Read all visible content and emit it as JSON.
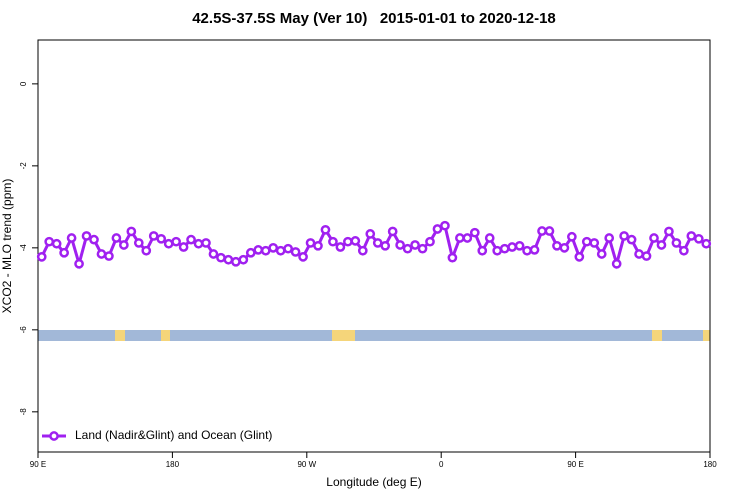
{
  "chart_data": {
    "type": "line",
    "title": "42.5S-37.5S May (Ver 10)   2015-01-01 to 2020-12-18",
    "x_label": "Longitude (deg E)",
    "y_label": "XCO2 - MLO trend (ppm)",
    "x": [
      92.5,
      97.5,
      102.5,
      107.5,
      112.5,
      117.5,
      122.5,
      127.5,
      132.5,
      137.5,
      142.5,
      147.5,
      152.5,
      157.5,
      162.5,
      167.5,
      172.5,
      177.5,
      182.5,
      187.5,
      192.5,
      197.5,
      202.5,
      207.5,
      212.5,
      217.5,
      222.5,
      227.5,
      232.5,
      237.5,
      242.5,
      247.5,
      252.5,
      257.5,
      262.5,
      267.5,
      272.5,
      277.5,
      282.5,
      287.5,
      292.5,
      297.5,
      302.5,
      307.5,
      312.5,
      317.5,
      322.5,
      327.5,
      332.5,
      337.5,
      342.5,
      347.5,
      352.5,
      357.5,
      362.5,
      367.5,
      372.5,
      377.5,
      382.5,
      387.5,
      392.5,
      397.5,
      402.5,
      407.5,
      412.5,
      417.5,
      422.5,
      427.5,
      432.5,
      437.5,
      442.5,
      447.5,
      452.5,
      457.5,
      462.5,
      467.5,
      472.5,
      477.5,
      482.5,
      487.5,
      492.5,
      497.5,
      502.5,
      507.5,
      512.5,
      517.5,
      522.5,
      527.5,
      532.5,
      537.5
    ],
    "series": [
      {
        "name": "Land (Nadir&Glint) and Ocean (Glint)",
        "color": "#a020f0",
        "values": [
          -4.22,
          -3.85,
          -3.9,
          -4.12,
          -3.76,
          -4.39,
          -3.71,
          -3.8,
          -4.15,
          -4.2,
          -3.76,
          -3.93,
          -3.6,
          -3.88,
          -4.07,
          -3.71,
          -3.78,
          -3.9,
          -3.85,
          -3.98,
          -3.8,
          -3.9,
          -3.88,
          -4.15,
          -4.24,
          -4.29,
          -4.34,
          -4.29,
          -4.12,
          -4.05,
          -4.07,
          -4.0,
          -4.07,
          -4.02,
          -4.1,
          -4.22,
          -3.88,
          -3.95,
          -3.56,
          -3.85,
          -3.98,
          -3.85,
          -3.83,
          -4.07,
          -3.66,
          -3.88,
          -3.95,
          -3.6,
          -3.93,
          -4.02,
          -3.93,
          -4.02,
          -3.85,
          -3.54,
          -3.46,
          -4.24,
          -3.76,
          -3.76,
          -3.63,
          -4.07,
          -3.76,
          -4.07,
          -4.02,
          -3.98,
          -3.95,
          -4.07,
          -4.05,
          -3.59,
          -3.59,
          -3.95,
          -4.0,
          -3.73,
          -4.22,
          -3.85,
          -3.88,
          -4.15,
          -3.76,
          -4.39,
          -3.71,
          -3.8,
          -4.15,
          -4.2,
          -3.76,
          -3.93,
          -3.6,
          -3.88,
          -4.07,
          -3.71,
          -3.78,
          -3.9
        ]
      }
    ],
    "xlim": [
      90,
      540
    ],
    "xticks": [
      {
        "value": 90,
        "label": "90 E"
      },
      180,
      {
        "value": 270,
        "label": "90 W"
      },
      {
        "value": 360,
        "label": "0"
      },
      {
        "value": 450,
        "label": "90 E"
      },
      {
        "value": 540,
        "label": "180"
      }
    ],
    "ylim": [
      -8.98,
      1.07
    ],
    "yticks": [
      0,
      -2,
      -4,
      -6,
      -8
    ],
    "legend": "bottom-left"
  }
}
